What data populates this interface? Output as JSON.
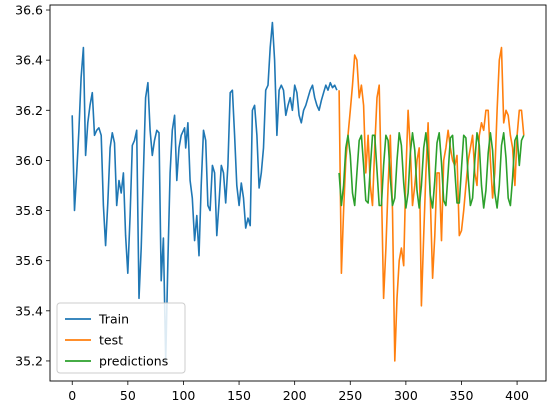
{
  "chart_data": {
    "type": "line",
    "title": "",
    "xlabel": "",
    "ylabel": "",
    "xlim": [
      -20,
      426
    ],
    "ylim": [
      35.12,
      36.62
    ],
    "grid": false,
    "legend_position": "lower-left",
    "x_ticks": [
      0,
      50,
      100,
      150,
      200,
      250,
      300,
      350,
      400
    ],
    "y_ticks": [
      35.2,
      35.4,
      35.6,
      35.8,
      36.0,
      36.2,
      36.4,
      36.6
    ],
    "x_tick_labels": [
      "0",
      "50",
      "100",
      "150",
      "200",
      "250",
      "300",
      "350",
      "400"
    ],
    "y_tick_labels": [
      "35.2",
      "35.4",
      "35.6",
      "35.8",
      "36.0",
      "36.2",
      "36.4",
      "36.6"
    ],
    "series": [
      {
        "name": "Train",
        "color": "#1f77b4",
        "x": [
          0,
          2,
          4,
          6,
          8,
          10,
          12,
          14,
          16,
          18,
          20,
          22,
          24,
          26,
          28,
          30,
          32,
          34,
          36,
          38,
          40,
          42,
          44,
          46,
          48,
          50,
          52,
          54,
          56,
          58,
          60,
          62,
          64,
          66,
          68,
          70,
          72,
          74,
          76,
          78,
          80,
          82,
          84,
          86,
          88,
          90,
          92,
          94,
          96,
          98,
          100,
          101,
          102,
          104,
          106,
          108,
          110,
          112,
          114,
          116,
          118,
          120,
          122,
          124,
          126,
          128,
          130,
          132,
          134,
          136,
          138,
          140,
          142,
          144,
          146,
          148,
          150,
          152,
          154,
          156,
          158,
          160,
          162,
          164,
          166,
          168,
          170,
          172,
          174,
          176,
          178,
          180,
          182,
          184,
          186,
          188,
          190,
          192,
          194,
          196,
          198,
          200,
          202,
          204,
          206,
          208,
          210,
          212,
          214,
          216,
          218,
          220,
          222,
          224,
          226,
          228,
          230,
          232,
          234,
          236,
          238
        ],
        "y": [
          36.18,
          35.8,
          35.95,
          36.12,
          36.33,
          36.45,
          36.02,
          36.15,
          36.22,
          36.27,
          36.1,
          36.12,
          36.13,
          36.1,
          35.82,
          35.66,
          35.83,
          36.05,
          36.11,
          36.07,
          35.82,
          35.92,
          35.87,
          35.95,
          35.7,
          35.55,
          35.78,
          36.06,
          36.08,
          36.12,
          35.45,
          35.65,
          35.95,
          36.25,
          36.31,
          36.12,
          36.02,
          36.08,
          36.12,
          36.11,
          35.52,
          35.69,
          35.2,
          35.6,
          35.95,
          36.12,
          36.18,
          35.92,
          36.05,
          36.1,
          36.12,
          36.13,
          36.05,
          36.15,
          35.92,
          35.85,
          35.68,
          35.78,
          35.62,
          35.9,
          36.12,
          36.08,
          35.82,
          35.8,
          35.98,
          35.95,
          35.7,
          35.83,
          35.98,
          35.95,
          35.83,
          35.98,
          36.27,
          36.28,
          36.1,
          35.9,
          35.82,
          35.91,
          35.85,
          35.73,
          35.77,
          35.74,
          36.2,
          36.22,
          36.1,
          35.89,
          35.95,
          36.05,
          36.28,
          36.3,
          36.45,
          36.55,
          36.4,
          36.1,
          36.28,
          36.3,
          36.28,
          36.18,
          36.22,
          36.25,
          36.2,
          36.3,
          36.27,
          36.18,
          36.15,
          36.2,
          36.22,
          36.25,
          36.28,
          36.3,
          36.25,
          36.22,
          36.2,
          36.24,
          36.27,
          36.3,
          36.28,
          36.31,
          36.29,
          36.3,
          36.28
        ]
      },
      {
        "name": "test",
        "color": "#ff7f0e",
        "x": [
          240,
          242,
          244,
          246,
          248,
          250,
          252,
          254,
          256,
          258,
          260,
          262,
          264,
          266,
          268,
          270,
          272,
          274,
          276,
          278,
          280,
          282,
          284,
          286,
          288,
          290,
          292,
          294,
          296,
          298,
          300,
          302,
          304,
          306,
          308,
          310,
          312,
          314,
          316,
          318,
          320,
          322,
          324,
          326,
          328,
          330,
          332,
          334,
          336,
          338,
          340,
          342,
          344,
          346,
          348,
          350,
          352,
          354,
          356,
          358,
          360,
          362,
          364,
          366,
          368,
          370,
          372,
          374,
          376,
          378,
          380,
          382,
          384,
          386,
          388,
          390,
          392,
          394,
          396,
          398,
          400,
          402,
          404,
          406
        ],
        "y": [
          36.28,
          35.55,
          35.8,
          36.0,
          36.1,
          36.2,
          36.3,
          36.42,
          36.4,
          36.25,
          36.3,
          36.22,
          35.95,
          36.1,
          35.9,
          35.82,
          36.05,
          36.25,
          36.3,
          35.9,
          35.45,
          35.65,
          35.9,
          36.1,
          35.8,
          35.2,
          35.45,
          35.6,
          35.65,
          35.58,
          35.95,
          36.2,
          36.05,
          35.82,
          35.9,
          36.0,
          36.05,
          35.42,
          35.7,
          35.95,
          36.15,
          35.85,
          35.53,
          35.7,
          35.95,
          35.95,
          35.68,
          36.0,
          36.05,
          36.12,
          36.05,
          36.0,
          35.98,
          36.02,
          35.7,
          35.72,
          35.8,
          35.9,
          36.0,
          36.05,
          36.1,
          35.95,
          35.9,
          36.1,
          36.15,
          36.12,
          36.2,
          36.2,
          36.0,
          35.85,
          35.95,
          36.2,
          36.4,
          36.45,
          36.15,
          36.2,
          36.18,
          36.1,
          36.05,
          35.9,
          36.1,
          36.2,
          36.2,
          36.1
        ]
      },
      {
        "name": "predictions",
        "color": "#2ca02c",
        "x": [
          240,
          242,
          244,
          246,
          248,
          250,
          252,
          254,
          256,
          258,
          260,
          262,
          264,
          266,
          268,
          270,
          272,
          274,
          276,
          278,
          280,
          282,
          284,
          286,
          288,
          290,
          292,
          294,
          296,
          298,
          300,
          302,
          304,
          306,
          308,
          310,
          312,
          314,
          316,
          318,
          320,
          322,
          324,
          326,
          328,
          330,
          332,
          334,
          336,
          338,
          340,
          342,
          344,
          346,
          348,
          350,
          352,
          354,
          356,
          358,
          360,
          362,
          364,
          366,
          368,
          370,
          372,
          374,
          376,
          378,
          380,
          382,
          384,
          386,
          388,
          390,
          392,
          394,
          396,
          398,
          400,
          402,
          404,
          406
        ],
        "y": [
          35.95,
          35.82,
          35.9,
          36.05,
          36.1,
          36.02,
          35.87,
          35.82,
          35.95,
          36.08,
          36.1,
          35.98,
          35.84,
          35.83,
          35.97,
          36.1,
          36.1,
          35.96,
          35.82,
          35.82,
          35.98,
          36.1,
          36.08,
          35.93,
          35.82,
          35.85,
          36.0,
          36.11,
          36.06,
          35.91,
          35.81,
          35.87,
          36.03,
          36.11,
          36.04,
          35.88,
          35.81,
          35.9,
          36.05,
          36.11,
          36.02,
          35.86,
          35.81,
          35.92,
          36.07,
          36.11,
          35.99,
          35.84,
          35.82,
          35.95,
          36.09,
          36.1,
          35.96,
          35.83,
          35.83,
          35.97,
          36.1,
          36.09,
          35.93,
          35.82,
          35.85,
          36.0,
          36.11,
          36.06,
          35.9,
          35.81,
          35.88,
          36.03,
          36.11,
          36.04,
          35.87,
          35.81,
          35.9,
          36.06,
          36.11,
          36.01,
          35.85,
          35.82,
          35.93,
          36.08,
          36.1,
          35.98,
          36.08,
          36.1
        ]
      }
    ]
  }
}
